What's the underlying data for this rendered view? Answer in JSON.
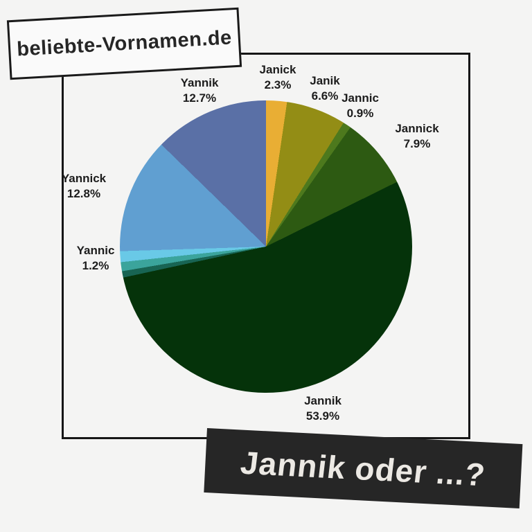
{
  "page": {
    "background": "#f4f4f3"
  },
  "badge": {
    "text": "beliebte-Vornamen.de"
  },
  "banner": {
    "text": "Jannik oder ...?",
    "background": "#262626",
    "text_color": "#ece9e4"
  },
  "chart_data": {
    "type": "pie",
    "title": "Jannik oder ...?",
    "start_angle_deg": 0,
    "direction": "clockwise",
    "legend": "none",
    "slices": [
      {
        "label": "Janick",
        "value": 2.3,
        "value_label": "2.3%",
        "color": "#e9ae34"
      },
      {
        "label": "Janik",
        "value": 6.6,
        "value_label": "6.6%",
        "color": "#938d15"
      },
      {
        "label": "Jannic",
        "value": 0.9,
        "value_label": "0.9%",
        "color": "#4d791d"
      },
      {
        "label": "Jannick",
        "value": 7.9,
        "value_label": "7.9%",
        "color": "#2d5a12"
      },
      {
        "label": "Jannik",
        "value": 53.9,
        "value_label": "53.9%",
        "color": "#05330a"
      },
      {
        "label": "",
        "value": 0.7,
        "value_label": "",
        "color": "#186453"
      },
      {
        "label": "",
        "value": 1.0,
        "value_label": "",
        "color": "#3ba49c"
      },
      {
        "label": "Yannic",
        "value": 1.2,
        "value_label": "1.2%",
        "color": "#69c9e7"
      },
      {
        "label": "Yannick",
        "value": 12.8,
        "value_label": "12.8%",
        "color": "#609fd1"
      },
      {
        "label": "Yannik",
        "value": 12.7,
        "value_label": "12.7%",
        "color": "#5a70a6"
      }
    ]
  }
}
